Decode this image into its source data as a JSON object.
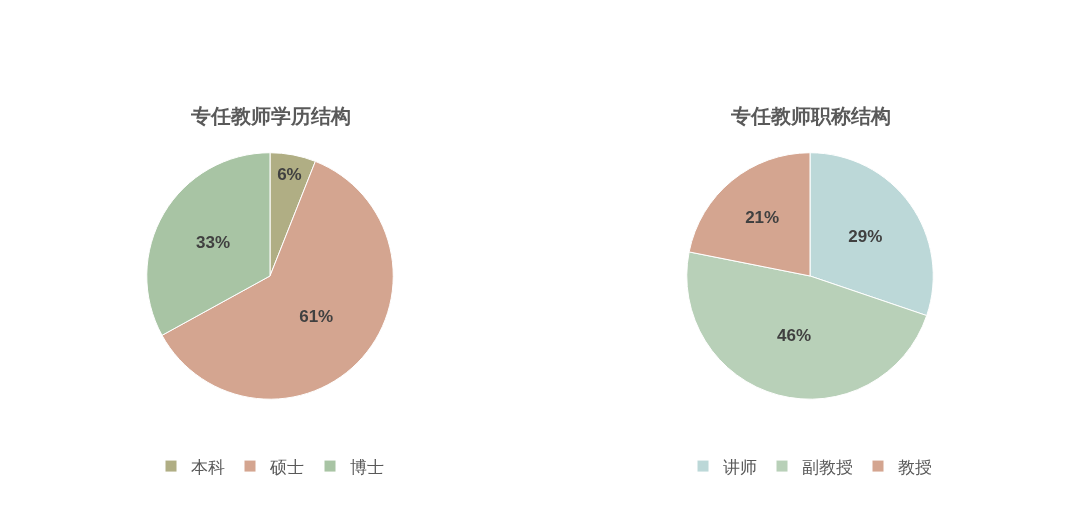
{
  "chart_data": [
    {
      "type": "pie",
      "title": "专任教师学历结构",
      "categories": [
        "本科",
        "硕士",
        "博士"
      ],
      "values": [
        6,
        61,
        33
      ],
      "value_labels": [
        "6%",
        "61%",
        "33%"
      ],
      "colors": [
        "#b0ae84",
        "#d4a590",
        "#a8c4a4"
      ],
      "legend": "bottom"
    },
    {
      "type": "pie",
      "title": "专任教师职称结构",
      "categories": [
        "讲师",
        "副教授",
        "教授"
      ],
      "values": [
        29,
        46,
        21
      ],
      "value_labels": [
        "29%",
        "46%",
        "21%"
      ],
      "colors": [
        "#bcd8d8",
        "#b8d0b8",
        "#d4a590"
      ],
      "legend": "bottom"
    }
  ]
}
